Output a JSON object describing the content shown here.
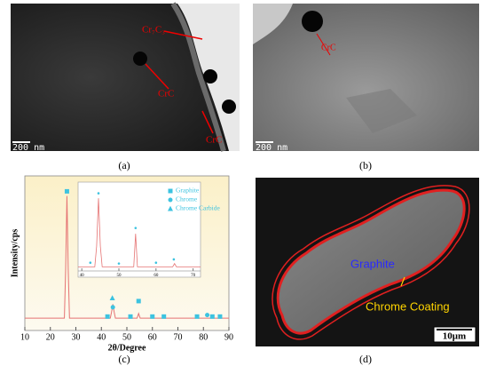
{
  "panels": [
    {
      "label": "(a)",
      "scale_bar": "200 nm",
      "annotations": [
        "Cr₇C₃",
        "CrC",
        "CrC"
      ]
    },
    {
      "label": "(b)",
      "scale_bar": "200 nm",
      "annotations": [
        "CrC"
      ]
    },
    {
      "label": "(c)",
      "chart": {
        "type": "line",
        "x_label": "2θ/Degree",
        "y_label": "Intensity/cps",
        "xlim": [
          10,
          90
        ],
        "xticks": [
          10,
          20,
          30,
          40,
          50,
          60,
          70,
          80,
          90
        ],
        "ylim": [
          0,
          100
        ],
        "color": "#e57373",
        "line": {
          "x": [
            10,
            25.5,
            26,
            26.5,
            27,
            27.5,
            43.5,
            44,
            44.5,
            45,
            45.5,
            54,
            54.6,
            55.2,
            77,
            77.5,
            78,
            90
          ],
          "y": [
            8,
            8,
            40,
            87,
            40,
            8,
            8,
            12,
            17,
            12,
            8,
            8,
            11,
            8,
            8,
            9,
            8,
            8
          ]
        },
        "series": [
          {
            "name": "Graphite",
            "marker": "square",
            "color": "#3cc3e0",
            "x": [
              26.5,
              42.4,
              51.4,
              54.6,
              60,
              64.5,
              77.5,
              83.5,
              86.5
            ],
            "y": [
              90,
              9,
              9,
              19,
              9,
              9,
              9,
              9,
              9
            ]
          },
          {
            "name": "Chrome",
            "marker": "circle",
            "color": "#3cc3e0",
            "x": [
              44.5,
              81.5
            ],
            "y": [
              15,
              10
            ]
          },
          {
            "name": "Chrome Carbide",
            "marker": "triangle",
            "color": "#3cc3e0",
            "x": [
              44.3
            ],
            "y": [
              21
            ]
          }
        ],
        "inset": {
          "xlim": [
            39,
            72
          ],
          "xticks": [
            40,
            50,
            60,
            70
          ],
          "ylim": [
            0,
            100
          ],
          "line": {
            "x": [
              39,
              43.5,
              44,
              44.5,
              45,
              45.5,
              54,
              54.5,
              55,
              64.5,
              65,
              65.5,
              72
            ],
            "y": [
              5,
              5,
              30,
              88,
              30,
              5,
              5,
              45,
              5,
              5,
              9,
              5,
              5
            ]
          },
          "markers": {
            "x": [
              44.5,
              42.3,
              50,
              54.5,
              60,
              64.8
            ],
            "y": [
              94,
              10,
              9,
              52,
              10,
              14
            ]
          }
        }
      }
    },
    {
      "label": "(d)",
      "scale_bar": "10μm",
      "annotations": [
        "Graphite",
        "Chrome Coating"
      ]
    }
  ]
}
